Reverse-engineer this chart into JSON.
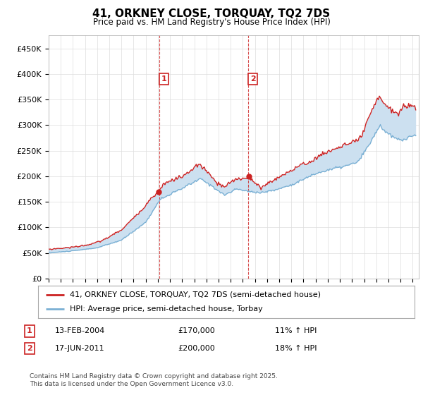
{
  "title": "41, ORKNEY CLOSE, TORQUAY, TQ2 7DS",
  "subtitle": "Price paid vs. HM Land Registry's House Price Index (HPI)",
  "ylim": [
    0,
    475000
  ],
  "yticks": [
    0,
    50000,
    100000,
    150000,
    200000,
    250000,
    300000,
    350000,
    400000,
    450000
  ],
  "ytick_labels": [
    "£0",
    "£50K",
    "£100K",
    "£150K",
    "£200K",
    "£250K",
    "£300K",
    "£350K",
    "£400K",
    "£450K"
  ],
  "red_color": "#cc2222",
  "blue_color": "#7ab0d4",
  "blue_fill": "#cce0f0",
  "sale1_date": "13-FEB-2004",
  "sale1_price": 170000,
  "sale1_hpi": "11% ↑ HPI",
  "sale2_date": "17-JUN-2011",
  "sale2_price": 200000,
  "sale2_hpi": "18% ↑ HPI",
  "legend1": "41, ORKNEY CLOSE, TORQUAY, TQ2 7DS (semi-detached house)",
  "legend2": "HPI: Average price, semi-detached house, Torbay",
  "footnote": "Contains HM Land Registry data © Crown copyright and database right 2025.\nThis data is licensed under the Open Government Licence v3.0.",
  "background_color": "#ffffff"
}
